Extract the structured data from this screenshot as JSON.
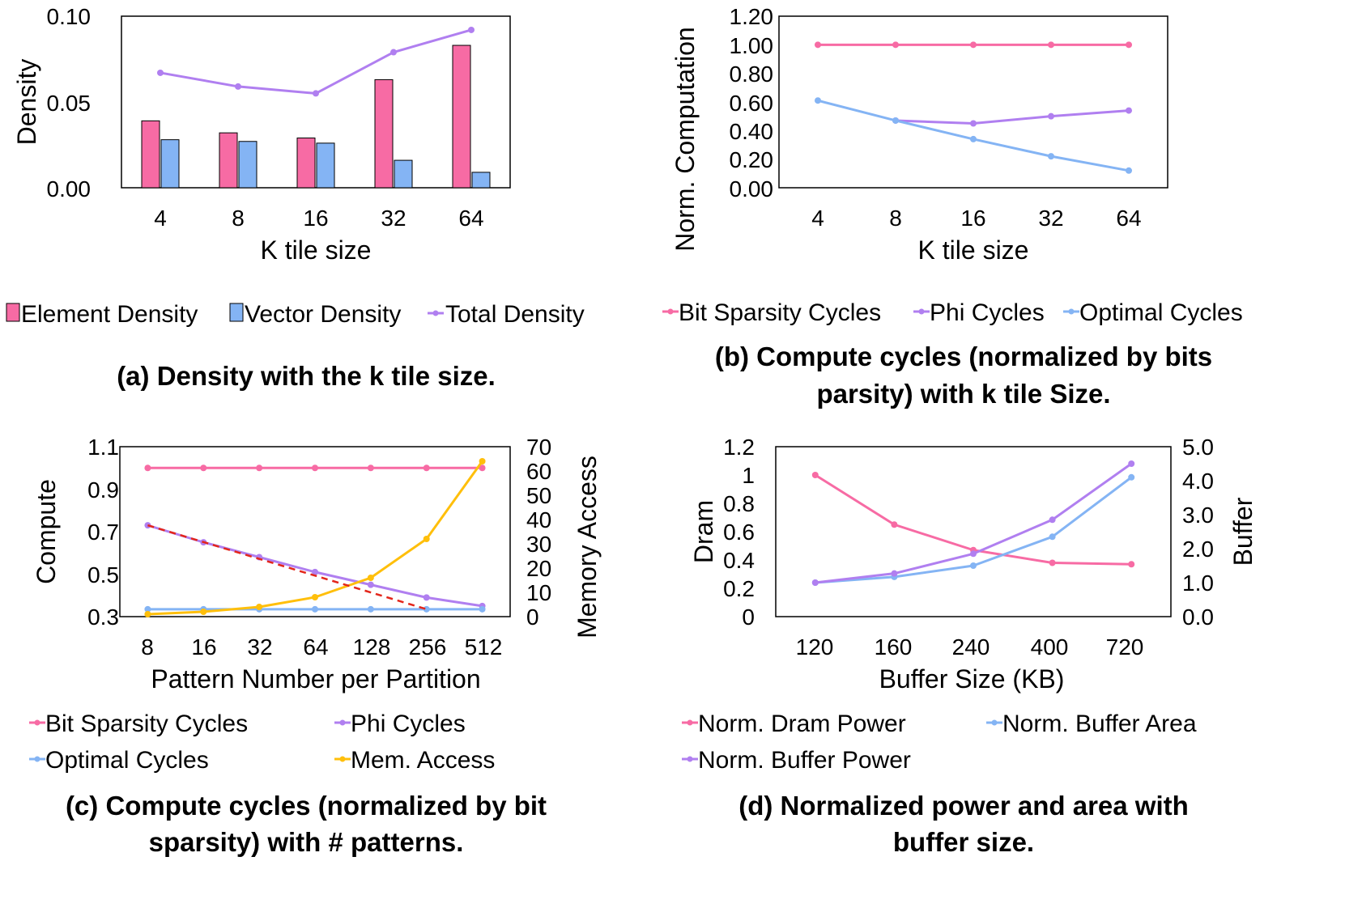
{
  "colors": {
    "pink": "#F76BA4",
    "purple": "#B07FF0",
    "blue": "#84B4F4",
    "orange": "#FFBF0B",
    "red_dash": "#E3261B",
    "bar_outline": "#000000"
  },
  "chart_data": [
    {
      "type": "bar+line",
      "id": "a",
      "caption": "(a) Density with the k tile size.",
      "xlabel": "K tile size",
      "ylabel": "Density",
      "categories": [
        "4",
        "8",
        "16",
        "32",
        "64"
      ],
      "ylim": [
        0,
        0.1
      ],
      "yticks": [
        "0.00",
        "0.05",
        "0.10"
      ],
      "series": [
        {
          "name": "Element Density",
          "kind": "bar",
          "color": "#F76BA4",
          "values": [
            0.039,
            0.032,
            0.029,
            0.063,
            0.083
          ]
        },
        {
          "name": "Vector Density",
          "kind": "bar",
          "color": "#84B4F4",
          "values": [
            0.028,
            0.027,
            0.026,
            0.016,
            0.009
          ]
        },
        {
          "name": "Total Density",
          "kind": "line",
          "color": "#B07FF0",
          "values": [
            0.067,
            0.059,
            0.055,
            0.079,
            0.092
          ]
        }
      ]
    },
    {
      "type": "line",
      "id": "b",
      "caption": [
        "(b) Compute cycles (normalized by bits",
        "parsity) with k tile Size."
      ],
      "xlabel": "K tile size",
      "ylabel": "Norm. Computation",
      "categories": [
        "4",
        "8",
        "16",
        "32",
        "64"
      ],
      "ylim": [
        0,
        1.2
      ],
      "yticks": [
        "0.00",
        "0.20",
        "0.40",
        "0.60",
        "0.80",
        "1.00",
        "1.20"
      ],
      "series": [
        {
          "name": "Bit Sparsity Cycles",
          "color": "#F76BA4",
          "values": [
            1.0,
            1.0,
            1.0,
            1.0,
            1.0
          ]
        },
        {
          "name": "Phi Cycles",
          "color": "#B07FF0",
          "values": [
            null,
            0.47,
            0.45,
            0.5,
            0.54
          ]
        },
        {
          "name": "Optimal Cycles",
          "color": "#84B4F4",
          "values": [
            0.61,
            0.47,
            0.34,
            0.22,
            0.12
          ]
        }
      ]
    },
    {
      "type": "line-dual-axis",
      "id": "c",
      "caption": [
        "(c) Compute cycles (normalized by bit",
        "sparsity) with # patterns."
      ],
      "xlabel": "Pattern Number per Partition",
      "ylabel": "Compute",
      "y2label": "Memory Access",
      "categories": [
        "8",
        "16",
        "32",
        "64",
        "128",
        "256",
        "512"
      ],
      "ylim": [
        0.3,
        1.1
      ],
      "yticks": [
        "0.3",
        "0.5",
        "0.7",
        "0.9",
        "1.1"
      ],
      "y2lim": [
        0,
        70
      ],
      "y2ticks": [
        "0",
        "10",
        "20",
        "30",
        "40",
        "50",
        "60",
        "70"
      ],
      "series": [
        {
          "name": "Bit Sparsity Cycles",
          "axis": "left",
          "color": "#F76BA4",
          "values": [
            1.0,
            1.0,
            1.0,
            1.0,
            1.0,
            1.0,
            1.0
          ]
        },
        {
          "name": "Phi Cycles",
          "axis": "left",
          "color": "#B07FF0",
          "values": [
            0.73,
            0.65,
            0.58,
            0.51,
            0.45,
            0.39,
            0.35
          ]
        },
        {
          "name": "Optimal Cycles",
          "axis": "left",
          "color": "#84B4F4",
          "values": [
            0.335,
            0.335,
            0.335,
            0.335,
            0.335,
            0.335,
            0.335
          ]
        },
        {
          "name": "Mem. Access",
          "axis": "right",
          "color": "#FFBF0B",
          "values": [
            1,
            2,
            4,
            8,
            16,
            32,
            64
          ]
        }
      ],
      "trendline": {
        "color": "#E3261B",
        "axis": "left",
        "x": [
          0,
          5
        ],
        "values": [
          0.73,
          0.335
        ]
      }
    },
    {
      "type": "line-dual-axis",
      "id": "d",
      "caption": [
        "(d) Normalized power and area with",
        "buffer size."
      ],
      "xlabel": "Buffer Size (KB)",
      "ylabel": "Dram",
      "y2label": "Buffer",
      "categories": [
        "120",
        "160",
        "240",
        "400",
        "720"
      ],
      "ylim": [
        0,
        1.2
      ],
      "yticks": [
        "0",
        "0.2",
        "0.4",
        "0.6",
        "0.8",
        "1",
        "1.2"
      ],
      "y2lim": [
        0,
        5
      ],
      "y2ticks": [
        "0.0",
        "1.0",
        "2.0",
        "3.0",
        "4.0",
        "5.0"
      ],
      "series": [
        {
          "name": "Norm. Dram Power",
          "axis": "left",
          "color": "#F76BA4",
          "values": [
            1.0,
            0.65,
            0.47,
            0.38,
            0.37
          ]
        },
        {
          "name": "Norm. Buffer Area",
          "axis": "right",
          "color": "#84B4F4",
          "values": [
            1.0,
            1.17,
            1.5,
            2.35,
            4.1
          ]
        },
        {
          "name": "Norm. Buffer Power",
          "axis": "right",
          "color": "#B07FF0",
          "values": [
            1.0,
            1.27,
            1.85,
            2.85,
            4.5
          ]
        }
      ]
    }
  ]
}
